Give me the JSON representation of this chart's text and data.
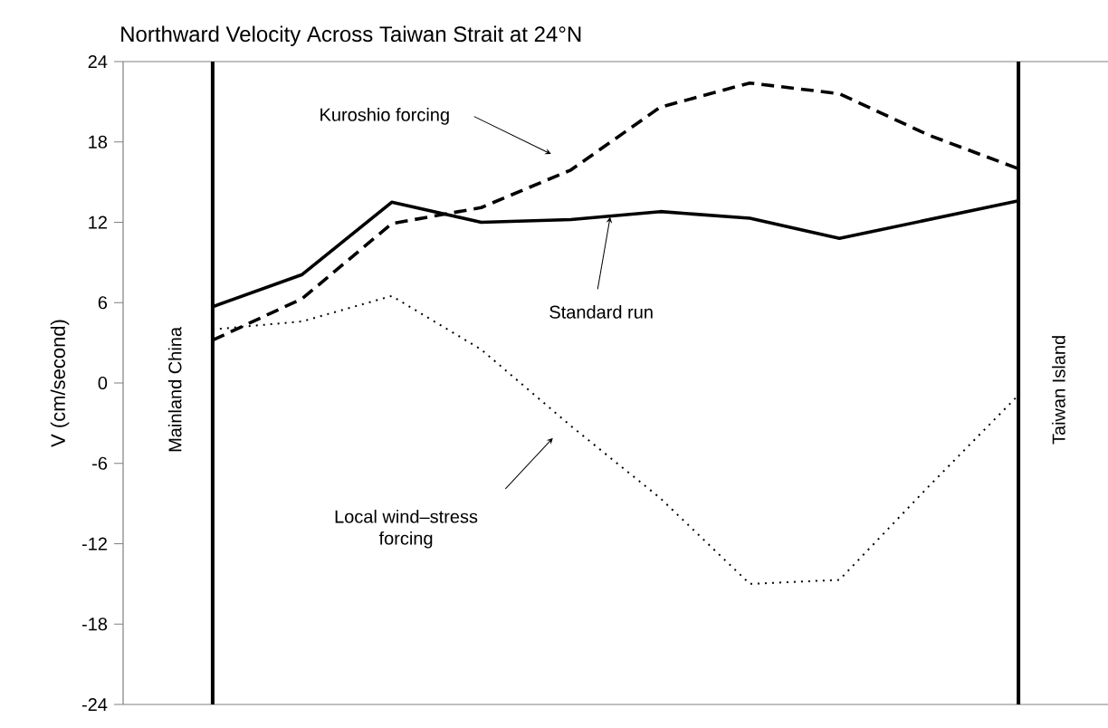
{
  "chart_data": {
    "type": "line",
    "title": "Northward Velocity Across Taiwan Strait at 24°N",
    "ylabel": "V (cm/second)",
    "categories": [
      null,
      null,
      null,
      null,
      null,
      null,
      null,
      null,
      null,
      null
    ],
    "series": [
      {
        "color": "#000000",
        "line_style": "solid",
        "values": [
          5.7,
          8.1,
          13.5,
          12.0,
          12.2,
          12.8,
          12.3,
          10.8,
          12.2,
          13.6
        ]
      },
      {
        "color": "#000000",
        "line_style": "dashed",
        "values": [
          3.2,
          6.3,
          11.9,
          13.1,
          15.9,
          20.6,
          22.4,
          21.6,
          18.5,
          16.0
        ]
      },
      {
        "color": "#000000",
        "line_style": "dotted",
        "values": [
          4.0,
          4.6,
          6.5,
          2.5,
          -3.2,
          -8.6,
          -15.0,
          -14.7,
          -7.7,
          -0.9
        ]
      }
    ],
    "annotations": [
      "Standard run",
      "Kuroshio forcing",
      "Local wind–stress forcing",
      "Mainland China",
      "Taiwan Island"
    ],
    "ylim": [
      -24,
      24
    ],
    "yticks": [
      -24,
      -18,
      -12,
      -6,
      0,
      6,
      12,
      18,
      24
    ],
    "grid": false,
    "tick_labels": "y",
    "marker": "none"
  }
}
